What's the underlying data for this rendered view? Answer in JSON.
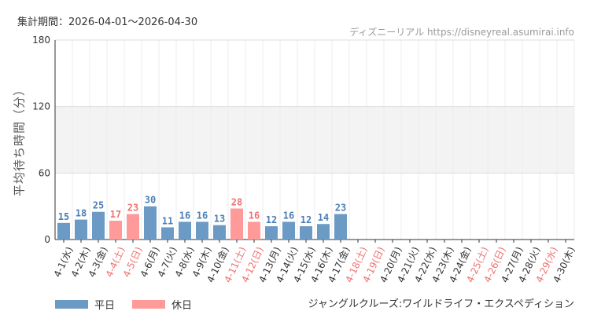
{
  "header": {
    "period": "集計期間：2026-04-01～2026-04-30",
    "source": "ディズニーリアル https://disneyreal.asumirai.info"
  },
  "footer": {
    "attraction": "ジャングルクルーズ:ワイルドライフ・エクスペディション"
  },
  "colors": {
    "weekday": "#6b9ac4",
    "holiday": "#fe9a9a",
    "weekday_text": "#4a7fb5",
    "holiday_text": "#f07070",
    "band": "#f3f3f3"
  },
  "chart_data": {
    "type": "bar",
    "ylabel": "平均待ち時間（分）",
    "ylim": [
      0,
      180
    ],
    "yticks": [
      0,
      60,
      120,
      180
    ],
    "grid": true,
    "legend_placement": "bottom-left",
    "legend": [
      {
        "key": "weekday",
        "label": "平日"
      },
      {
        "key": "holiday",
        "label": "休日"
      }
    ],
    "categories": [
      "4-1(水)",
      "4-2(木)",
      "4-3(金)",
      "4-4(土)",
      "4-5(日)",
      "4-6(月)",
      "4-7(火)",
      "4-8(水)",
      "4-9(木)",
      "4-10(金)",
      "4-11(土)",
      "4-12(日)",
      "4-13(月)",
      "4-14(火)",
      "4-15(水)",
      "4-16(木)",
      "4-17(金)",
      "4-18(土)",
      "4-19(日)",
      "4-20(月)",
      "4-21(火)",
      "4-22(水)",
      "4-23(木)",
      "4-24(金)",
      "4-25(土)",
      "4-26(日)",
      "4-27(月)",
      "4-28(火)",
      "4-29(水)",
      "4-30(木)"
    ],
    "values": [
      15,
      18,
      25,
      17,
      23,
      30,
      11,
      16,
      16,
      13,
      28,
      16,
      12,
      16,
      12,
      14,
      23,
      null,
      null,
      null,
      null,
      null,
      null,
      null,
      null,
      null,
      null,
      null,
      null,
      null
    ],
    "day_type": [
      "weekday",
      "weekday",
      "weekday",
      "holiday",
      "holiday",
      "weekday",
      "weekday",
      "weekday",
      "weekday",
      "weekday",
      "holiday",
      "holiday",
      "weekday",
      "weekday",
      "weekday",
      "weekday",
      "weekday",
      "holiday",
      "holiday",
      "weekday",
      "weekday",
      "weekday",
      "weekday",
      "weekday",
      "holiday",
      "holiday",
      "weekday",
      "weekday",
      "holiday",
      "weekday"
    ]
  }
}
